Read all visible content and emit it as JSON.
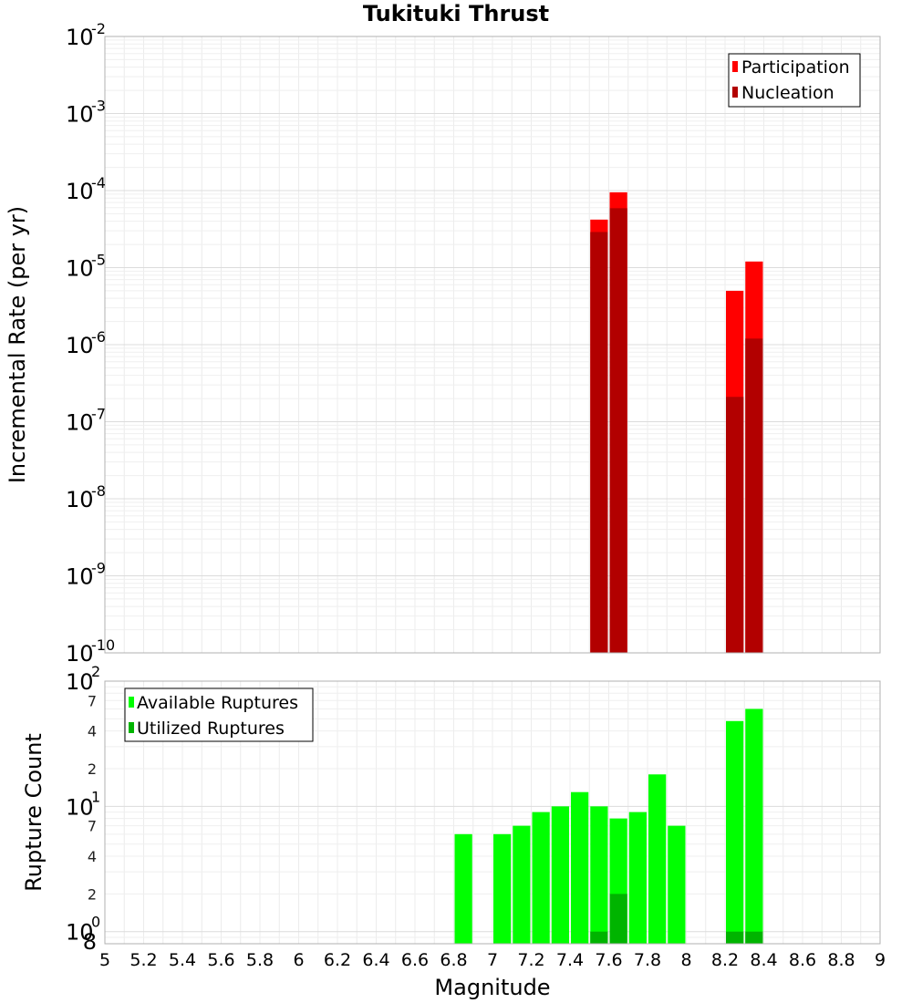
{
  "chart_data": {
    "type": "bar",
    "title": "Tukituki Thrust",
    "xlabel": "Magnitude",
    "x_ticks": [
      "5",
      "5.2",
      "5.4",
      "5.6",
      "5.8",
      "6",
      "6.2",
      "6.4",
      "6.6",
      "6.8",
      "7",
      "7.2",
      "7.4",
      "7.6",
      "7.8",
      "8",
      "8.2",
      "8.4",
      "8.6",
      "8.8",
      "9"
    ],
    "xlim": [
      5,
      9
    ],
    "bin_width": 0.1,
    "top_panel": {
      "ylabel": "Incremental Rate (per yr)",
      "yscale": "log",
      "ylim": [
        1e-10,
        0.01
      ],
      "y_tick_exponents": [
        "-2",
        "-3",
        "-4",
        "-5",
        "-6",
        "-7",
        "-8",
        "-9",
        "-10"
      ],
      "legend": [
        "Participation",
        "Nucleation"
      ],
      "legend_position": "top-right",
      "series": [
        {
          "name": "Participation",
          "color": "#ff0000",
          "points": [
            [
              7.55,
              4.2e-05
            ],
            [
              7.65,
              9.5e-05
            ],
            [
              8.25,
              5e-06
            ],
            [
              8.35,
              1.2e-05
            ]
          ]
        },
        {
          "name": "Nucleation",
          "color": "#b20000",
          "points": [
            [
              7.55,
              2.9e-05
            ],
            [
              7.65,
              5.9e-05
            ],
            [
              8.25,
              2.1e-07
            ],
            [
              8.35,
              1.2e-06
            ]
          ]
        }
      ]
    },
    "bottom_panel": {
      "ylabel": "Rupture Count",
      "yscale": "log",
      "ylim": [
        0.8,
        100
      ],
      "y_major_ticks": [
        {
          "value": 1,
          "exp": "0"
        },
        {
          "value": 10,
          "exp": "1"
        },
        {
          "value": 100,
          "exp": "2"
        }
      ],
      "y_minor_labels": [
        {
          "value": 0.8,
          "label": "8"
        },
        {
          "value": 2,
          "label": "2"
        },
        {
          "value": 4,
          "label": "4"
        },
        {
          "value": 7,
          "label": "7"
        },
        {
          "value": 20,
          "label": "2"
        },
        {
          "value": 40,
          "label": "4"
        },
        {
          "value": 70,
          "label": "7"
        }
      ],
      "legend": [
        "Available Ruptures",
        "Utilized Ruptures"
      ],
      "legend_position": "top-left",
      "series": [
        {
          "name": "Available Ruptures",
          "color": "#00ff00",
          "points": [
            [
              6.85,
              6
            ],
            [
              7.05,
              6
            ],
            [
              7.15,
              7
            ],
            [
              7.25,
              9
            ],
            [
              7.35,
              10
            ],
            [
              7.45,
              13
            ],
            [
              7.55,
              10
            ],
            [
              7.65,
              8
            ],
            [
              7.75,
              9
            ],
            [
              7.85,
              18
            ],
            [
              7.95,
              7
            ],
            [
              8.25,
              48
            ],
            [
              8.35,
              60
            ]
          ]
        },
        {
          "name": "Utilized Ruptures",
          "color": "#00b400",
          "points": [
            [
              7.55,
              1
            ],
            [
              7.65,
              2
            ],
            [
              8.25,
              1
            ],
            [
              8.35,
              1
            ]
          ]
        }
      ]
    }
  }
}
